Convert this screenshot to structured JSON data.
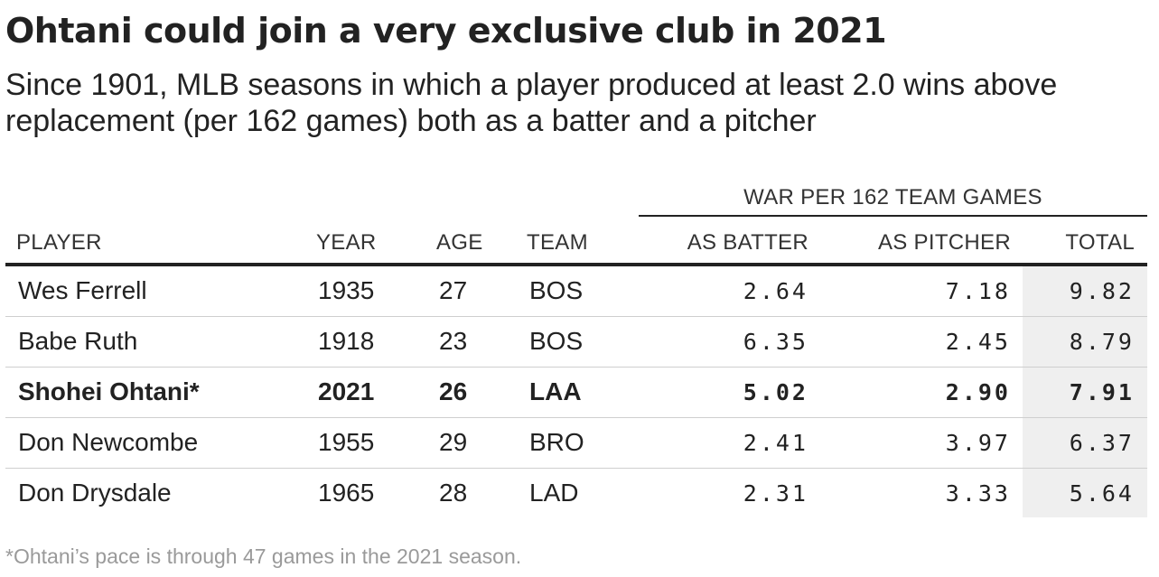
{
  "title": "Ohtani could join a very exclusive club in 2021",
  "subtitle": "Since 1901, MLB seasons in which a player produced at least 2.0 wins above replacement (per 162 games) both as a batter and a pitcher",
  "table": {
    "group_header": "WAR PER 162 TEAM GAMES",
    "columns": {
      "player": "PLAYER",
      "year": "YEAR",
      "age": "AGE",
      "team": "TEAM",
      "batter": "AS BATTER",
      "pitcher": "AS PITCHER",
      "total": "TOTAL"
    },
    "rows": [
      {
        "player": "Wes Ferrell",
        "year": "1935",
        "age": "27",
        "team": "BOS",
        "batter": "2.64",
        "pitcher": "7.18",
        "total": "9.82",
        "highlight": false
      },
      {
        "player": "Babe Ruth",
        "year": "1918",
        "age": "23",
        "team": "BOS",
        "batter": "6.35",
        "pitcher": "2.45",
        "total": "8.79",
        "highlight": false
      },
      {
        "player": "Shohei Ohtani*",
        "year": "2021",
        "age": "26",
        "team": "LAA",
        "batter": "5.02",
        "pitcher": "2.90",
        "total": "7.91",
        "highlight": true
      },
      {
        "player": "Don Newcombe",
        "year": "1955",
        "age": "29",
        "team": "BRO",
        "batter": "2.41",
        "pitcher": "3.97",
        "total": "6.37",
        "highlight": false
      },
      {
        "player": "Don Drysdale",
        "year": "1965",
        "age": "28",
        "team": "LAD",
        "batter": "2.31",
        "pitcher": "3.33",
        "total": "5.64",
        "highlight": false
      }
    ]
  },
  "footnote": "*Ohtani’s pace is through 47 games in the 2021 season.",
  "colors": {
    "text": "#222222",
    "total_column_bg": "#efefef",
    "footnote": "#9a9a9a"
  }
}
